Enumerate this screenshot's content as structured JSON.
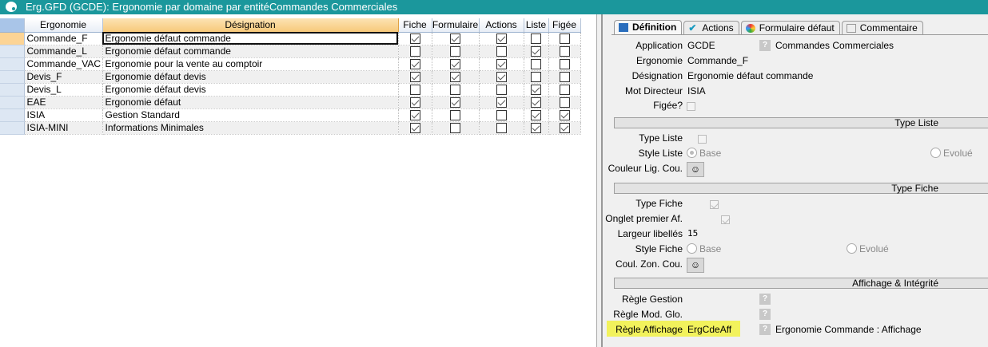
{
  "window": {
    "title": "Erg.GFD (GCDE): Ergonomie par domaine par entitéCommandes Commerciales",
    "icon": "palette-icon",
    "accent": "#1b979c"
  },
  "grid": {
    "columns": [
      "Ergonomie",
      "Désignation",
      "Fiche",
      "Formulaire",
      "Actions",
      "Liste",
      "Figée"
    ],
    "rows": [
      {
        "ergonomie": "Commande_F",
        "designation": "Ergonomie défaut commande",
        "checks": [
          true,
          true,
          true,
          false,
          false
        ]
      },
      {
        "ergonomie": "Commande_L",
        "designation": "Ergonomie défaut commande",
        "checks": [
          false,
          false,
          false,
          true,
          false
        ]
      },
      {
        "ergonomie": "Commande_VAC",
        "designation": "Ergonomie pour la vente au comptoir",
        "checks": [
          true,
          true,
          true,
          false,
          false
        ]
      },
      {
        "ergonomie": "Devis_F",
        "designation": "Ergonomie défaut devis",
        "checks": [
          true,
          true,
          true,
          false,
          false
        ]
      },
      {
        "ergonomie": "Devis_L",
        "designation": "Ergonomie défaut devis",
        "checks": [
          false,
          false,
          false,
          true,
          false
        ]
      },
      {
        "ergonomie": "EAE",
        "designation": "Ergonomie défaut",
        "checks": [
          true,
          true,
          true,
          true,
          false
        ]
      },
      {
        "ergonomie": "ISIA",
        "designation": "Gestion Standard",
        "checks": [
          true,
          false,
          false,
          true,
          true
        ]
      },
      {
        "ergonomie": "ISIA-MINI",
        "designation": "Informations Minimales",
        "checks": [
          true,
          false,
          false,
          true,
          true
        ]
      }
    ]
  },
  "tabs": [
    {
      "label": "Définition",
      "active": true
    },
    {
      "label": "Actions"
    },
    {
      "label": "Formulaire défaut"
    },
    {
      "label": "Commentaire"
    }
  ],
  "form": {
    "application_label": "Application",
    "application": "GCDE",
    "application_desc": "Commandes Commerciales",
    "ergonomie_label": "Ergonomie",
    "ergonomie": "Commande_F",
    "designation_label": "Désignation",
    "designation": "Ergonomie défaut commande",
    "mot_label": "Mot Directeur",
    "mot": "ISIA",
    "figee_label": "Figée?",
    "figee": false,
    "section_liste": "Type Liste",
    "type_liste_label": "Type Liste",
    "type_liste": false,
    "style_liste_label": "Style Liste",
    "style_liste_options": [
      "Base",
      "Evolué"
    ],
    "style_liste": "Base",
    "couleur_label": "Couleur Lig. Cou.",
    "section_fiche": "Type Fiche",
    "type_fiche_label": "Type Fiche",
    "type_fiche": true,
    "onglet_label": "Onglet premier Af.",
    "onglet": true,
    "largeur_label": "Largeur libellés",
    "largeur": "15",
    "style_fiche_label": "Style Fiche",
    "style_fiche_options": [
      "Base",
      "Evolué"
    ],
    "coul_zon_label": "Coul. Zon. Cou.",
    "section_aff": "Affichage & Intégrité",
    "regle_gestion_label": "Règle Gestion",
    "regle_mod_label": "Règle Mod. Glo.",
    "regle_aff_label": "Règle Affichage",
    "regle_aff": "ErgCdeAff",
    "regle_aff_desc": "Ergonomie Commande : Affichage",
    "highlight": "#f2f25c"
  }
}
